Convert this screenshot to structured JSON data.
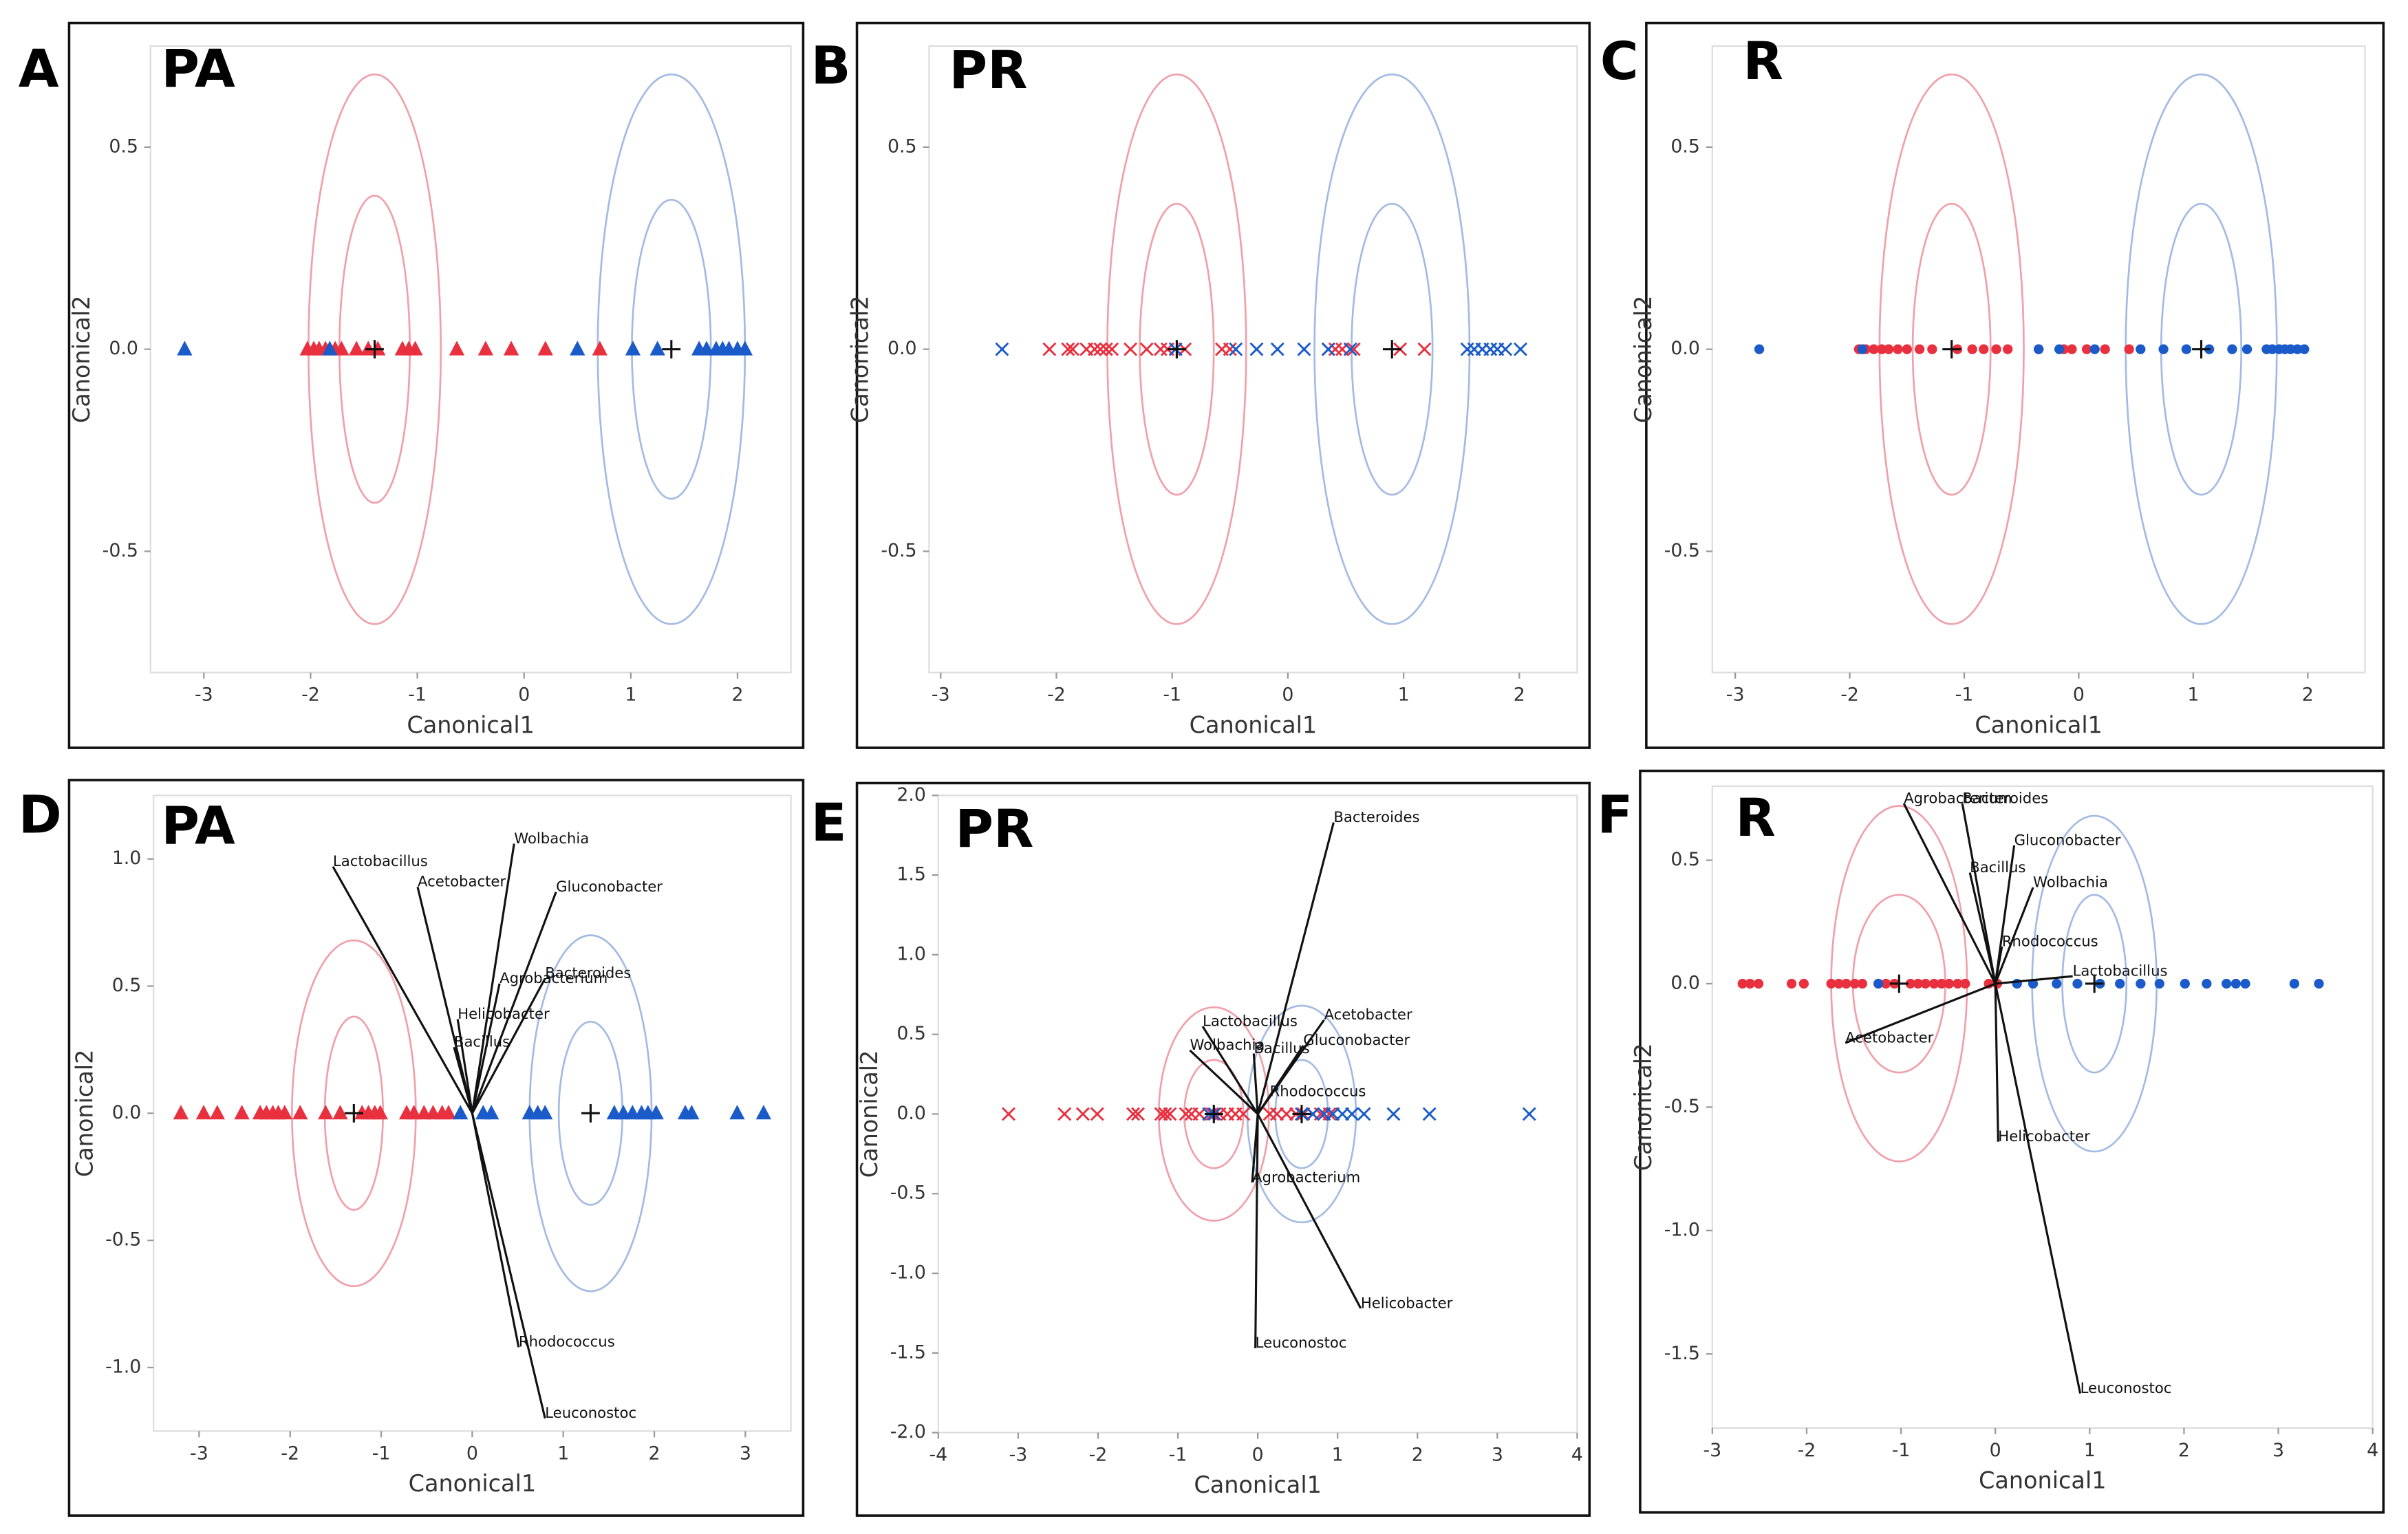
{
  "chart_data": [
    {
      "type": "scatter",
      "panel_label": "A",
      "title": "PA",
      "xlabel": "Canonical1",
      "ylabel": "Canonical2",
      "marker": "triangle",
      "xlim": [
        -3.5,
        2.5
      ],
      "ylim": [
        -0.8,
        0.75
      ],
      "xticks": [
        -3,
        -2,
        -1,
        0,
        1,
        2
      ],
      "yticks": [
        -0.5,
        {
          "value": 0,
          "label": "0.0"
        },
        0.5
      ],
      "series": [
        {
          "color": "#e8303f",
          "x": [
            -2.03,
            -1.97,
            -1.92,
            -1.86,
            -1.77,
            -1.71,
            -1.57,
            -1.46,
            -1.37,
            -1.14,
            -1.08,
            -1.02,
            -0.63,
            -0.36,
            -0.12,
            0.2,
            0.71
          ],
          "values": [
            0,
            0,
            0,
            0,
            0,
            0,
            0,
            0,
            0,
            0,
            0,
            0,
            0,
            0,
            0,
            0,
            0
          ]
        },
        {
          "color": "#1a5bc9",
          "x": [
            -3.18,
            -1.82,
            0.5,
            1.02,
            1.25,
            1.64,
            1.71,
            1.8,
            1.86,
            1.92,
            2.0,
            2.07
          ],
          "values": [
            0,
            0,
            0,
            0,
            0,
            0,
            0,
            0,
            0,
            0,
            0,
            0
          ]
        }
      ],
      "centroids": [
        {
          "x": -1.4,
          "y": 0
        },
        {
          "x": 1.38,
          "y": 0
        }
      ],
      "ellipses": [
        {
          "cx": -1.4,
          "cy": 0,
          "rx": 0.62,
          "ry": 0.68,
          "color": "#f0a0ab"
        },
        {
          "cx": -1.4,
          "cy": 0,
          "rx": 0.33,
          "ry": 0.38,
          "color": "#f0a0ab"
        },
        {
          "cx": 1.38,
          "cy": 0,
          "rx": 0.69,
          "ry": 0.68,
          "color": "#a3bbe3"
        },
        {
          "cx": 1.38,
          "cy": 0,
          "rx": 0.37,
          "ry": 0.37,
          "color": "#a3bbe3"
        }
      ]
    },
    {
      "type": "scatter",
      "panel_label": "B",
      "title": "PR",
      "xlabel": "Canonical1",
      "ylabel": "Canonical2",
      "marker": "x",
      "xlim": [
        -3.1,
        2.5
      ],
      "ylim": [
        -0.8,
        0.75
      ],
      "xticks": [
        -3,
        -2,
        -1,
        0,
        1,
        2
      ],
      "yticks": [
        -0.5,
        {
          "value": 0,
          "label": "0.0"
        },
        0.5
      ],
      "series": [
        {
          "color": "#e8303f",
          "x": [
            -2.06,
            -1.9,
            -1.86,
            -1.74,
            -1.67,
            -1.62,
            -1.57,
            -1.52,
            -1.36,
            -1.22,
            -1.1,
            -1.04,
            -0.89,
            -0.57,
            -0.5,
            0.35,
            0.41,
            0.47,
            0.57,
            0.97,
            1.18
          ],
          "values": [
            0,
            0,
            0,
            0,
            0,
            0,
            0,
            0,
            0,
            0,
            0,
            0,
            0,
            0,
            0,
            0,
            0,
            0,
            0,
            0,
            0
          ]
        },
        {
          "color": "#1a5bc9",
          "x": [
            -2.47,
            -0.97,
            -0.45,
            -0.27,
            -0.09,
            0.14,
            0.35,
            0.54,
            1.55,
            1.61,
            1.68,
            1.75,
            1.81,
            1.88,
            2.01
          ],
          "values": [
            0,
            0,
            0,
            0,
            0,
            0,
            0,
            0,
            0,
            0,
            0,
            0,
            0,
            0,
            0
          ]
        }
      ],
      "centroids": [
        {
          "x": -0.96,
          "y": 0
        },
        {
          "x": 0.9,
          "y": 0
        }
      ],
      "ellipses": [
        {
          "cx": -0.96,
          "cy": 0,
          "rx": 0.6,
          "ry": 0.68,
          "color": "#f0a0ab"
        },
        {
          "cx": -0.96,
          "cy": 0,
          "rx": 0.32,
          "ry": 0.36,
          "color": "#f0a0ab"
        },
        {
          "cx": 0.9,
          "cy": 0,
          "rx": 0.67,
          "ry": 0.68,
          "color": "#a3bbe3"
        },
        {
          "cx": 0.9,
          "cy": 0,
          "rx": 0.35,
          "ry": 0.36,
          "color": "#a3bbe3"
        }
      ]
    },
    {
      "type": "scatter",
      "panel_label": "C",
      "title": "R",
      "xlabel": "Canonical1",
      "ylabel": "Canonical2",
      "marker": "circle",
      "xlim": [
        -3.2,
        2.5
      ],
      "ylim": [
        -0.8,
        0.75
      ],
      "xticks": [
        -3,
        -2,
        -1,
        0,
        1,
        2
      ],
      "yticks": [
        -0.5,
        {
          "value": 0,
          "label": "0.0"
        },
        0.5
      ],
      "series": [
        {
          "color": "#e8303f",
          "x": [
            -1.92,
            -1.86,
            -1.79,
            -1.72,
            -1.66,
            -1.58,
            -1.5,
            -1.39,
            -1.28,
            -1.06,
            -0.93,
            -0.83,
            -0.72,
            -0.62,
            -0.35,
            -0.13,
            -0.06,
            0.07,
            0.23,
            0.44
          ],
          "values": [
            0,
            0,
            0,
            0,
            0,
            0,
            0,
            0,
            0,
            0,
            0,
            0,
            0,
            0,
            0,
            0,
            0,
            0,
            0,
            0
          ]
        },
        {
          "color": "#1a5bc9",
          "x": [
            -2.79,
            -1.89,
            -0.35,
            -0.17,
            0.14,
            0.54,
            0.74,
            0.94,
            1.14,
            1.34,
            1.47,
            1.64,
            1.69,
            1.75,
            1.8,
            1.85,
            1.91,
            1.97
          ],
          "values": [
            0,
            0,
            0,
            0,
            0,
            0,
            0,
            0,
            0,
            0,
            0,
            0,
            0,
            0,
            0,
            0,
            0,
            0
          ]
        }
      ],
      "centroids": [
        {
          "x": -1.11,
          "y": 0
        },
        {
          "x": 1.07,
          "y": 0
        }
      ],
      "ellipses": [
        {
          "cx": -1.11,
          "cy": 0,
          "rx": 0.63,
          "ry": 0.68,
          "color": "#f0a0ab"
        },
        {
          "cx": -1.11,
          "cy": 0,
          "rx": 0.34,
          "ry": 0.36,
          "color": "#f0a0ab"
        },
        {
          "cx": 1.07,
          "cy": 0,
          "rx": 0.66,
          "ry": 0.68,
          "color": "#a3bbe3"
        },
        {
          "cx": 1.07,
          "cy": 0,
          "rx": 0.35,
          "ry": 0.36,
          "color": "#a3bbe3"
        }
      ]
    },
    {
      "type": "scatter",
      "panel_label": "D",
      "title": "PA",
      "xlabel": "Canonical1",
      "ylabel": "Canonical2",
      "marker": "triangle",
      "xlim": [
        -3.5,
        3.5
      ],
      "ylim": [
        -1.25,
        1.25
      ],
      "xticks": [
        -3,
        -2,
        -1,
        0,
        1,
        2,
        3
      ],
      "yticks": [
        {
          "value": -1,
          "label": "-1.0"
        },
        -0.5,
        {
          "value": 0,
          "label": "0.0"
        },
        0.5,
        {
          "value": 1,
          "label": "1.0"
        }
      ],
      "series": [
        {
          "color": "#e8303f",
          "x": [
            -3.2,
            -2.95,
            -2.8,
            -2.53,
            -2.33,
            -2.26,
            -2.19,
            -2.13,
            -2.06,
            -1.89,
            -1.61,
            -1.45,
            -1.21,
            -1.14,
            -1.07,
            -1.01,
            -0.72,
            -0.64,
            -0.53,
            -0.43,
            -0.33,
            -0.26
          ],
          "values": [
            0,
            0,
            0,
            0,
            0,
            0,
            0,
            0,
            0,
            0,
            0,
            0,
            0,
            0,
            0,
            0,
            0,
            0,
            0,
            0,
            0,
            0
          ]
        },
        {
          "color": "#1a5bc9",
          "x": [
            -0.13,
            0.12,
            0.21,
            0.63,
            0.72,
            0.8,
            1.56,
            1.66,
            1.76,
            1.86,
            1.93,
            2.02,
            2.34,
            2.41,
            2.91,
            3.2
          ],
          "values": [
            0,
            0,
            0,
            0,
            0,
            0,
            0,
            0,
            0,
            0,
            0,
            0,
            0,
            0,
            0,
            0
          ]
        }
      ],
      "centroids": [
        {
          "x": -1.3,
          "y": 0
        },
        {
          "x": 1.3,
          "y": 0
        }
      ],
      "ellipses": [
        {
          "cx": -1.3,
          "cy": 0,
          "rx": 0.68,
          "ry": 0.68,
          "color": "#f0a0ab"
        },
        {
          "cx": -1.3,
          "cy": 0,
          "rx": 0.32,
          "ry": 0.38,
          "color": "#f0a0ab"
        },
        {
          "cx": 1.3,
          "cy": 0,
          "rx": 0.67,
          "ry": 0.7,
          "color": "#a3bbe3"
        },
        {
          "cx": 1.3,
          "cy": 0,
          "rx": 0.35,
          "ry": 0.36,
          "color": "#a3bbe3"
        }
      ],
      "vectors": [
        {
          "label": "Lactobacillus",
          "x": -1.53,
          "y": 0.97
        },
        {
          "label": "Wolbachia",
          "x": 0.46,
          "y": 1.06
        },
        {
          "label": "Acetobacter",
          "x": -0.6,
          "y": 0.89
        },
        {
          "label": "Gluconobacter",
          "x": 0.92,
          "y": 0.87
        },
        {
          "label": "Bacteroides",
          "x": 0.8,
          "y": 0.53
        },
        {
          "label": "Agrobacterium",
          "x": 0.3,
          "y": 0.51
        },
        {
          "label": "Helicobacter",
          "x": -0.16,
          "y": 0.37
        },
        {
          "label": "Bacillus",
          "x": -0.2,
          "y": 0.26
        },
        {
          "label": "Rhodococcus",
          "x": 0.51,
          "y": -0.92
        },
        {
          "label": "Leuconostoc",
          "x": 0.8,
          "y": -1.2
        }
      ]
    },
    {
      "type": "scatter",
      "panel_label": "E",
      "title": "PR",
      "xlabel": "Canonical1",
      "ylabel": "Canonical2",
      "marker": "x",
      "xlim": [
        -4,
        4
      ],
      "ylim": [
        -2,
        2
      ],
      "xticks": [
        -4,
        -3,
        -2,
        -1,
        0,
        1,
        2,
        3,
        4
      ],
      "yticks": [
        {
          "value": -2,
          "label": "-2.0"
        },
        -1.5,
        {
          "value": -1,
          "label": "-1.0"
        },
        -0.5,
        {
          "value": 0,
          "label": "0.0"
        },
        0.5,
        {
          "value": 1,
          "label": "1.0"
        },
        1.5,
        {
          "value": 2,
          "label": "2.0"
        }
      ],
      "series": [
        {
          "color": "#e8303f",
          "x": [
            -3.12,
            -2.42,
            -2.19,
            -2.01,
            -1.56,
            -1.5,
            -1.21,
            -1.16,
            -1.1,
            -0.9,
            -0.83,
            -0.73,
            -0.57,
            -0.48,
            -0.38,
            -0.28,
            -0.18,
            0.15,
            0.24,
            0.36,
            0.48,
            0.57,
            0.69,
            0.79,
            0.9
          ],
          "values": [
            0,
            0,
            0,
            0,
            0,
            0,
            0,
            0,
            0,
            0,
            0,
            0,
            0,
            0,
            0,
            0,
            0,
            0,
            0,
            0,
            0,
            0,
            0,
            0,
            0
          ]
        },
        {
          "color": "#1a5bc9",
          "x": [
            -0.61,
            -0.54,
            0.55,
            0.69,
            0.83,
            0.94,
            1.06,
            1.18,
            1.33,
            1.7,
            2.15,
            3.4
          ],
          "values": [
            0,
            0,
            0,
            0,
            0,
            0,
            0,
            0,
            0,
            0,
            0,
            0
          ]
        }
      ],
      "centroids": [
        {
          "x": -0.55,
          "y": 0
        },
        {
          "x": 0.55,
          "y": 0
        }
      ],
      "ellipses": [
        {
          "cx": -0.55,
          "cy": 0,
          "rx": 0.69,
          "ry": 0.67,
          "color": "#f0a0ab"
        },
        {
          "cx": -0.55,
          "cy": 0,
          "rx": 0.37,
          "ry": 0.34,
          "color": "#f0a0ab"
        },
        {
          "cx": 0.55,
          "cy": 0,
          "rx": 0.68,
          "ry": 0.68,
          "color": "#a3bbe3"
        },
        {
          "cx": 0.55,
          "cy": 0,
          "rx": 0.33,
          "ry": 0.34,
          "color": "#a3bbe3"
        }
      ],
      "vectors": [
        {
          "label": "Bacteroides",
          "x": 0.95,
          "y": 1.83
        },
        {
          "label": "Lactobacillus",
          "x": -0.69,
          "y": 0.55
        },
        {
          "label": "Acetobacter",
          "x": 0.83,
          "y": 0.59
        },
        {
          "label": "Wolbachia",
          "x": -0.85,
          "y": 0.4
        },
        {
          "label": "Bacillus",
          "x": -0.05,
          "y": 0.38
        },
        {
          "label": "Gluconobacter",
          "x": 0.57,
          "y": 0.43
        },
        {
          "label": "Rhodococcus",
          "x": 0.15,
          "y": 0.11
        },
        {
          "label": "Agrobacterium",
          "x": -0.07,
          "y": -0.43
        },
        {
          "label": "Helicobacter",
          "x": 1.29,
          "y": -1.22
        },
        {
          "label": "Leuconostoc",
          "x": -0.03,
          "y": -1.47
        }
      ]
    },
    {
      "type": "scatter",
      "panel_label": "F",
      "title": "R",
      "xlabel": "Canonical1",
      "ylabel": "Canonical2",
      "marker": "circle",
      "xlim": [
        -3,
        4
      ],
      "ylim": [
        -1.8,
        0.8
      ],
      "xticks": [
        -3,
        -2,
        -1,
        0,
        1,
        2,
        3,
        4
      ],
      "yticks": [
        -1.5,
        {
          "value": -1,
          "label": "-1.0"
        },
        -0.5,
        {
          "value": 0,
          "label": "0.0"
        },
        0.5
      ],
      "series": [
        {
          "color": "#e8303f",
          "x": [
            -2.68,
            -2.6,
            -2.51,
            -2.16,
            -2.03,
            -1.74,
            -1.66,
            -1.58,
            -1.49,
            -1.41,
            -1.24,
            -1.16,
            -1.07,
            -0.9,
            -0.82,
            -0.74,
            -0.65,
            -0.57,
            -0.49,
            -0.4,
            -0.32,
            -0.07,
            0.02
          ],
          "values": [
            0,
            0,
            0,
            0,
            0,
            0,
            0,
            0,
            0,
            0,
            0,
            0,
            0,
            0,
            0,
            0,
            0,
            0,
            0,
            0,
            0,
            0,
            0
          ]
        },
        {
          "color": "#1a5bc9",
          "x": [
            -1.24,
            0.23,
            0.4,
            0.65,
            0.87,
            1.11,
            1.32,
            1.54,
            1.74,
            2.01,
            2.24,
            2.45,
            2.55,
            2.65,
            3.17,
            3.43
          ],
          "values": [
            0,
            0,
            0,
            0,
            0,
            0,
            0,
            0,
            0,
            0,
            0,
            0,
            0,
            0,
            0,
            0
          ]
        }
      ],
      "centroids": [
        {
          "x": -1.02,
          "y": 0
        },
        {
          "x": 1.05,
          "y": 0
        }
      ],
      "ellipses": [
        {
          "cx": -1.02,
          "cy": 0,
          "rx": 0.72,
          "ry": 0.72,
          "color": "#f0a0ab"
        },
        {
          "cx": -1.02,
          "cy": 0,
          "rx": 0.49,
          "ry": 0.36,
          "color": "#f0a0ab"
        },
        {
          "cx": 1.05,
          "cy": 0,
          "rx": 0.66,
          "ry": 0.68,
          "color": "#a3bbe3"
        },
        {
          "cx": 1.05,
          "cy": 0,
          "rx": 0.34,
          "ry": 0.36,
          "color": "#a3bbe3"
        }
      ],
      "vectors": [
        {
          "label": "Agrobacterium",
          "x": -0.97,
          "y": 0.73
        },
        {
          "label": "Bacteroides",
          "x": -0.35,
          "y": 0.73
        },
        {
          "label": "Gluconobacter",
          "x": 0.2,
          "y": 0.56
        },
        {
          "label": "Bacillus",
          "x": -0.27,
          "y": 0.45
        },
        {
          "label": "Wolbachia",
          "x": 0.4,
          "y": 0.39
        },
        {
          "label": "Rhodococcus",
          "x": 0.07,
          "y": 0.15
        },
        {
          "label": "Lactobacillus",
          "x": 0.82,
          "y": 0.03
        },
        {
          "label": "Acetobacter",
          "x": -1.59,
          "y": -0.24
        },
        {
          "label": "Helicobacter",
          "x": 0.03,
          "y": -0.64
        },
        {
          "label": "Leuconostoc",
          "x": 0.9,
          "y": -1.66
        }
      ]
    }
  ]
}
